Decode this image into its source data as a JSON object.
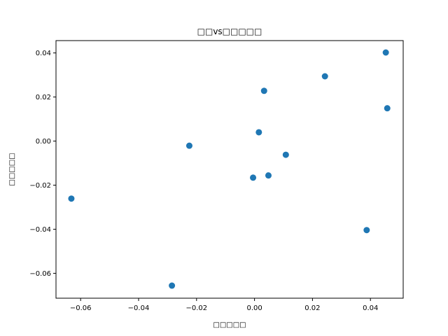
{
  "chart_data": {
    "type": "scatter",
    "title": "□□vs□□□□□",
    "xlabel": "□□□□□",
    "ylabel": "□□□□□",
    "xlim": [
      -0.0685,
      0.0513
    ],
    "ylim": [
      -0.0713,
      0.0456
    ],
    "xticks": [
      -0.06,
      -0.04,
      -0.02,
      0.0,
      0.02,
      0.04
    ],
    "xtick_labels": [
      "−0.06",
      "−0.04",
      "−0.02",
      "0.00",
      "0.02",
      "0.04"
    ],
    "yticks": [
      -0.06,
      -0.04,
      -0.02,
      0.0,
      0.02,
      0.04
    ],
    "ytick_labels": [
      "−0.06",
      "−0.04",
      "−0.02",
      "0.00",
      "0.02",
      "0.04"
    ],
    "grid": false,
    "color": "#1f77b4",
    "points": [
      {
        "x": -0.0632,
        "y": -0.0261
      },
      {
        "x": -0.0285,
        "y": -0.0656
      },
      {
        "x": -0.0225,
        "y": -0.0021
      },
      {
        "x": -0.0005,
        "y": -0.0166
      },
      {
        "x": 0.0015,
        "y": 0.004
      },
      {
        "x": 0.0033,
        "y": 0.0228
      },
      {
        "x": 0.0048,
        "y": -0.0156
      },
      {
        "x": 0.0108,
        "y": -0.0062
      },
      {
        "x": 0.0243,
        "y": 0.0294
      },
      {
        "x": 0.0387,
        "y": -0.0404
      },
      {
        "x": 0.0453,
        "y": 0.0402
      },
      {
        "x": 0.0458,
        "y": 0.0149
      }
    ]
  }
}
